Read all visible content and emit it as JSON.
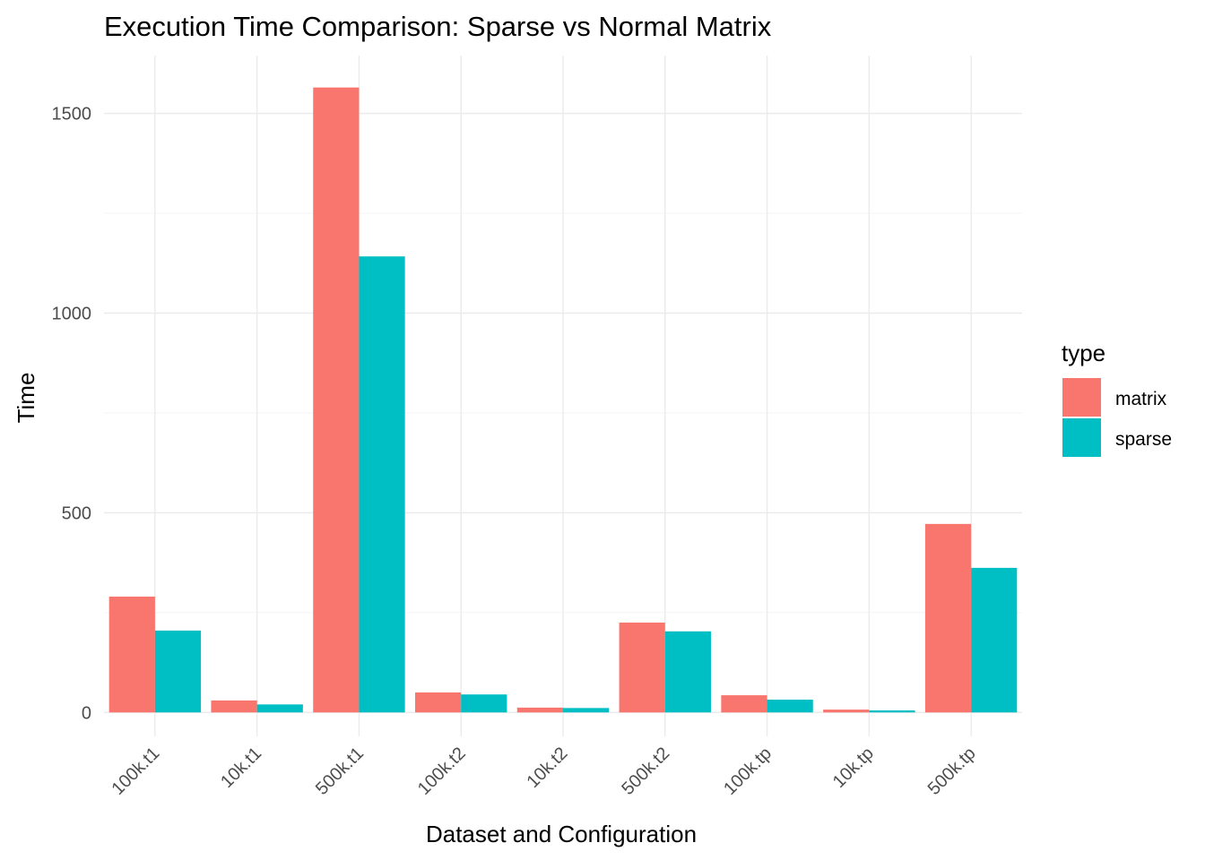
{
  "chart_data": {
    "type": "bar",
    "title": "Execution Time Comparison: Sparse vs Normal Matrix",
    "xlabel": "Dataset and Configuration",
    "ylabel": "Time",
    "categories": [
      "100k.t1",
      "10k.t1",
      "500k.t1",
      "100k.t2",
      "10k.t2",
      "500k.t2",
      "100k.tp",
      "10k.tp",
      "500k.tp"
    ],
    "series": [
      {
        "name": "matrix",
        "color": "#F8766D",
        "values": [
          290,
          30,
          1565,
          50,
          12,
          225,
          43,
          7,
          472
        ]
      },
      {
        "name": "sparse",
        "color": "#00BFC4",
        "values": [
          205,
          20,
          1142,
          45,
          11,
          203,
          32,
          5,
          362
        ]
      }
    ],
    "ylim": [
      -60,
      1645
    ],
    "yticks": [
      0,
      500,
      1000,
      1500
    ],
    "grid": true,
    "legend": {
      "title": "type",
      "position": "right"
    }
  }
}
